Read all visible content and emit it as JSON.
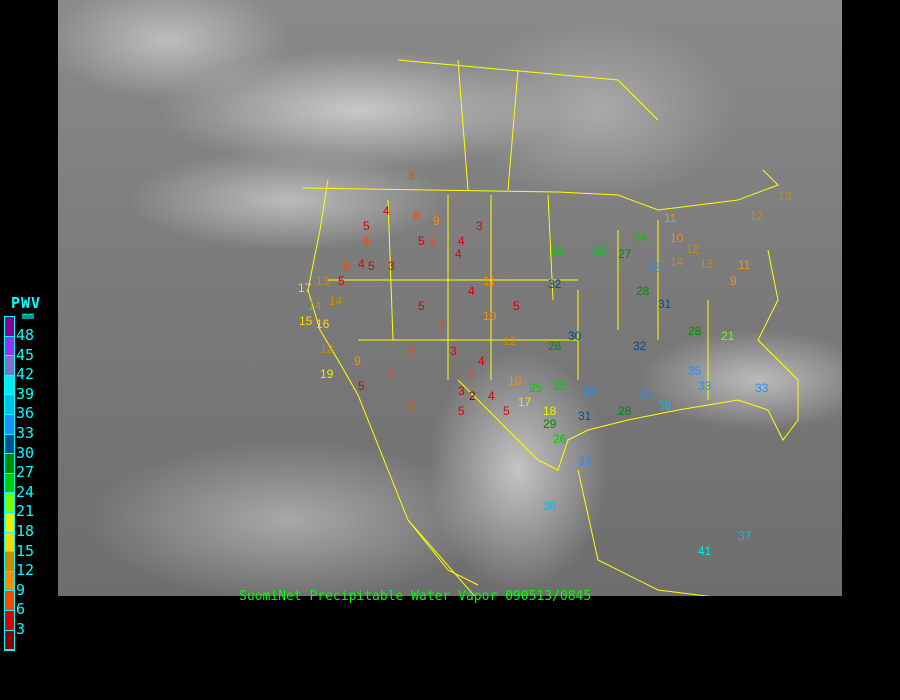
{
  "caption": "SuomiNet Precipitable Water Vapor 090513/0845",
  "legend": {
    "title": "PWV",
    "unit": "mm",
    "labels": [
      "48",
      "45",
      "42",
      "39",
      "36",
      "33",
      "30",
      "27",
      "24",
      "21",
      "18",
      "15",
      "12",
      "9",
      "6",
      "3"
    ],
    "colors": [
      "#8b008b",
      "#9b30ff",
      "#8470c8",
      "#00eeee",
      "#00bfe8",
      "#1e90ff",
      "#00508c",
      "#008b00",
      "#00cd00",
      "#7cfc00",
      "#eeee00",
      "#ffd700",
      "#cd8c00",
      "#ff8c00",
      "#ff4500",
      "#dd0000",
      "#8b0000"
    ]
  },
  "map": {
    "border_color": "#ffff00",
    "background": "GOES infrared satellite imagery, North America"
  },
  "stations": [
    "8",
    "8",
    "4",
    "6",
    "5",
    "5",
    "6",
    "4",
    "9",
    "5",
    "6",
    "4",
    "5",
    "3",
    "4",
    "5",
    "6",
    "8",
    "6",
    "4",
    "3",
    "4",
    "5",
    "6",
    "5",
    "7",
    "5",
    "10",
    "12",
    "13",
    "14",
    "16",
    "15",
    "17",
    "14",
    "12",
    "19",
    "9",
    "5",
    "3",
    "2",
    "10",
    "17",
    "18",
    "26",
    "29",
    "31",
    "25",
    "28",
    "28",
    "26",
    "27",
    "24",
    "32",
    "33",
    "31",
    "28",
    "25",
    "30",
    "33",
    "32",
    "36",
    "33",
    "36",
    "35",
    "33",
    "33",
    "41",
    "37",
    "11",
    "10",
    "12",
    "11",
    "13",
    "14",
    "9",
    "11",
    "12",
    "13",
    "3",
    "4",
    "26",
    "28",
    "21",
    "33"
  ]
}
